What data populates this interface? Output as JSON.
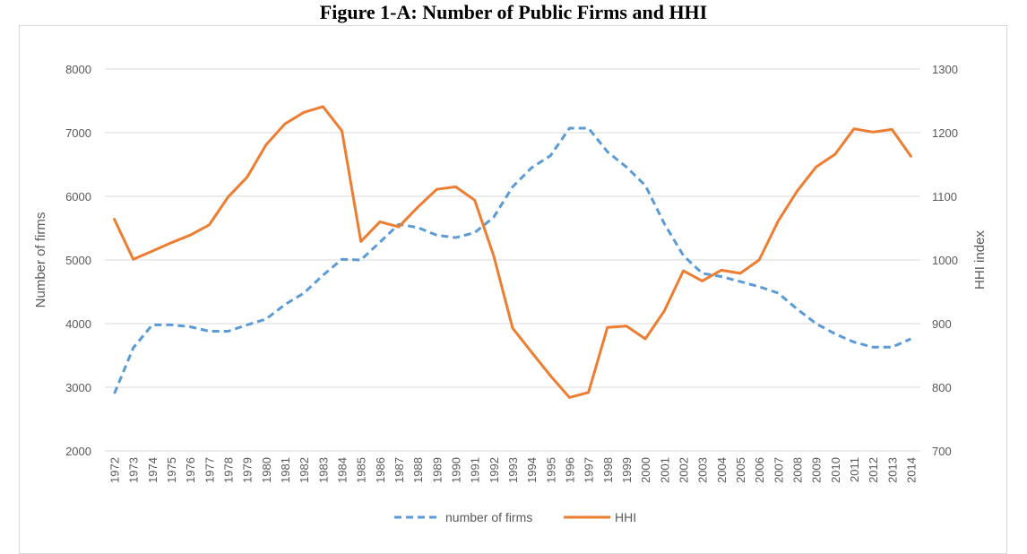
{
  "chart_data": {
    "type": "line",
    "title": "Figure 1-A: Number of Public Firms and HHI",
    "xlabel": "",
    "ylabel": "Number of firms",
    "y2label": "HHI index",
    "ylim": [
      2000,
      8000
    ],
    "y2lim": [
      700,
      1300
    ],
    "yticks": [
      "2000",
      "3000",
      "4000",
      "5000",
      "6000",
      "7000",
      "8000"
    ],
    "y2ticks": [
      "700",
      "800",
      "900",
      "1000",
      "1100",
      "1200",
      "1300"
    ],
    "grid": true,
    "legend_position": "bottom",
    "x": [
      "1972",
      "1973",
      "1974",
      "1975",
      "1976",
      "1977",
      "1978",
      "1979",
      "1980",
      "1981",
      "1982",
      "1983",
      "1984",
      "1985",
      "1986",
      "1987",
      "1988",
      "1989",
      "1990",
      "1991",
      "1992",
      "1993",
      "1994",
      "1995",
      "1996",
      "1997",
      "1998",
      "1999",
      "2000",
      "2001",
      "2002",
      "2003",
      "2004",
      "2005",
      "2006",
      "2007",
      "2008",
      "2009",
      "2010",
      "2011",
      "2012",
      "2013",
      "2014"
    ],
    "series": [
      {
        "name": "number of firms",
        "axis": "left",
        "color": "#5b9bd5",
        "style": "dashed",
        "values": [
          2900,
          3620,
          3980,
          3980,
          3950,
          3880,
          3880,
          3980,
          4070,
          4300,
          4480,
          4760,
          5010,
          5000,
          5280,
          5560,
          5510,
          5390,
          5350,
          5430,
          5670,
          6150,
          6450,
          6640,
          7070,
          7070,
          6700,
          6460,
          6170,
          5570,
          5070,
          4790,
          4740,
          4660,
          4580,
          4480,
          4230,
          4000,
          3840,
          3710,
          3630,
          3630,
          3760
        ]
      },
      {
        "name": "HHI",
        "axis": "right",
        "color": "#ed7d31",
        "style": "solid",
        "values": [
          1064,
          1001,
          1014,
          1027,
          1039,
          1055,
          1099,
          1130,
          1181,
          1214,
          1232,
          1241,
          1203,
          1029,
          1060,
          1052,
          1083,
          1111,
          1115,
          1094,
          1007,
          893,
          855,
          818,
          784,
          792,
          894,
          896,
          876,
          920,
          983,
          967,
          984,
          979,
          1000,
          1061,
          1108,
          1146,
          1166,
          1206,
          1201,
          1205,
          1163
        ]
      }
    ]
  }
}
